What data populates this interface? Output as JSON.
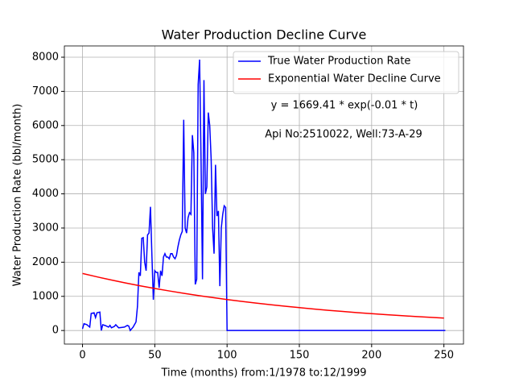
{
  "chart_data": {
    "type": "line",
    "title": "Water Production Decline Curve",
    "xlabel": "Time (months) from:1/1978 to:12/1999",
    "ylabel": "Water Production Rate (bbl/month)",
    "annotations": [
      "y = 1669.41 * exp(-0.01 * t)",
      "Api No:2510022, Well:73-A-29"
    ],
    "xlim": [
      -12.55,
      263.55
    ],
    "xticks": [
      0,
      50,
      100,
      150,
      200,
      250
    ],
    "ylim": [
      -397,
      8330
    ],
    "yticks": [
      0,
      1000,
      2000,
      3000,
      4000,
      5000,
      6000,
      7000,
      8000
    ],
    "grid": true,
    "legend": "upper right",
    "series": [
      {
        "name": "True Water Production Rate",
        "color": "#0000ff",
        "x": [
          0,
          1,
          3,
          5,
          6,
          8,
          9,
          10,
          12,
          13,
          14,
          16,
          18,
          19,
          20,
          22,
          23,
          25,
          27,
          29,
          31,
          32,
          33,
          35,
          37,
          38,
          39,
          40,
          41,
          42,
          43,
          44,
          45,
          46,
          47,
          48,
          49,
          50,
          51,
          52,
          53,
          54,
          55,
          56,
          57,
          58,
          59,
          60,
          61,
          62,
          63,
          64,
          65,
          66,
          67,
          68,
          69,
          70,
          71,
          72,
          73,
          74,
          75,
          76,
          77,
          78,
          79,
          80,
          81,
          82,
          83,
          84,
          85,
          86,
          87,
          88,
          89,
          90,
          91,
          92,
          93,
          94,
          95,
          96,
          97,
          98,
          99,
          100,
          251
        ],
        "values": [
          50,
          200,
          170,
          100,
          500,
          520,
          380,
          520,
          540,
          0,
          170,
          140,
          100,
          150,
          80,
          120,
          170,
          80,
          90,
          100,
          150,
          130,
          0,
          100,
          250,
          700,
          1700,
          1600,
          2700,
          2720,
          2000,
          1750,
          2800,
          2850,
          3620,
          2200,
          900,
          1750,
          1700,
          1700,
          1250,
          1750,
          1600,
          2150,
          2250,
          2150,
          2150,
          2100,
          2250,
          2250,
          2150,
          2100,
          2200,
          2450,
          2650,
          2800,
          2900,
          6170,
          3000,
          2850,
          3300,
          3450,
          3400,
          5720,
          5200,
          1350,
          1500,
          7200,
          7930,
          5000,
          1500,
          7330,
          4000,
          4200,
          6380,
          6000,
          5000,
          3000,
          2250,
          4850,
          3350,
          3500,
          1300,
          3000,
          3400,
          3650,
          3600,
          0,
          0
        ]
      },
      {
        "name": "Exponential Water Decline Curve",
        "color": "#ff0000",
        "x": [
          0,
          10,
          20,
          30,
          40,
          50,
          60,
          70,
          80,
          90,
          100,
          110,
          120,
          130,
          140,
          150,
          160,
          170,
          180,
          190,
          200,
          210,
          220,
          230,
          240,
          250
        ],
        "values": [
          1669,
          1571,
          1478,
          1390,
          1308,
          1231,
          1158,
          1089,
          1025,
          964,
          907,
          853,
          803,
          755,
          711,
          669,
          629,
          592,
          557,
          524,
          493,
          464,
          436,
          411,
          386,
          363
        ]
      }
    ]
  }
}
